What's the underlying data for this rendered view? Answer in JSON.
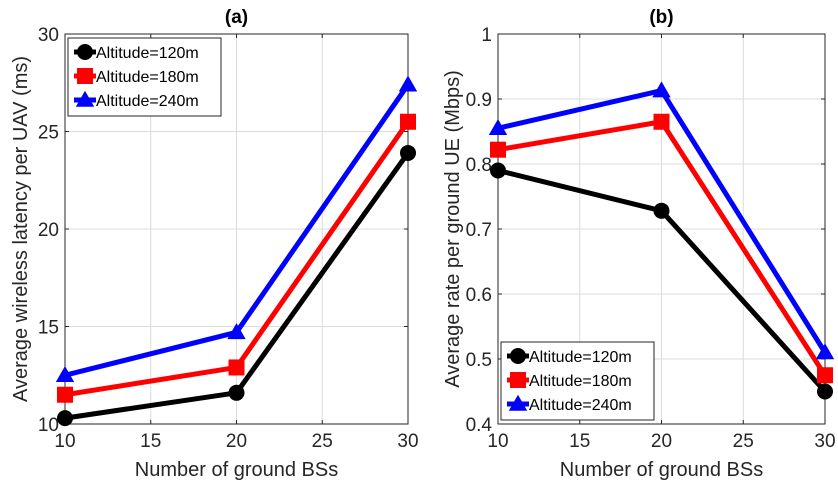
{
  "chart_data": [
    {
      "type": "line",
      "title": "(a)",
      "xlabel": "Number of ground BSs",
      "ylabel": "Average wireless latency per UAV (ms)",
      "x": [
        10,
        20,
        30
      ],
      "xlim": [
        10,
        30
      ],
      "ylim": [
        10,
        30
      ],
      "xticks": [
        10,
        15,
        20,
        25,
        30
      ],
      "yticks": [
        10,
        15,
        20,
        25,
        30
      ],
      "grid": true,
      "legend_position": "top-left",
      "series": [
        {
          "name": "Altitude=120m",
          "color": "#000000",
          "marker": "circle",
          "values": [
            10.3,
            11.6,
            23.9
          ]
        },
        {
          "name": "Altitude=180m",
          "color": "#ff0000",
          "marker": "square",
          "values": [
            11.5,
            12.9,
            25.5
          ]
        },
        {
          "name": "Altitude=240m",
          "color": "#0000ff",
          "marker": "triangle",
          "values": [
            12.5,
            14.7,
            27.4
          ]
        }
      ]
    },
    {
      "type": "line",
      "title": "(b)",
      "xlabel": "Number of ground BSs",
      "ylabel": "Average rate per ground UE (Mbps)",
      "x": [
        10,
        20,
        30
      ],
      "xlim": [
        10,
        30
      ],
      "ylim": [
        0.4,
        1
      ],
      "xticks": [
        10,
        15,
        20,
        25,
        30
      ],
      "yticks": [
        0.4,
        0.5,
        0.6,
        0.7,
        0.8,
        0.9,
        1
      ],
      "grid": true,
      "legend_position": "bottom-left",
      "series": [
        {
          "name": "Altitude=120m",
          "color": "#000000",
          "marker": "circle",
          "values": [
            0.79,
            0.728,
            0.45
          ]
        },
        {
          "name": "Altitude=180m",
          "color": "#ff0000",
          "marker": "square",
          "values": [
            0.822,
            0.865,
            0.475
          ]
        },
        {
          "name": "Altitude=240m",
          "color": "#0000ff",
          "marker": "triangle",
          "values": [
            0.855,
            0.913,
            0.51
          ]
        }
      ]
    }
  ]
}
